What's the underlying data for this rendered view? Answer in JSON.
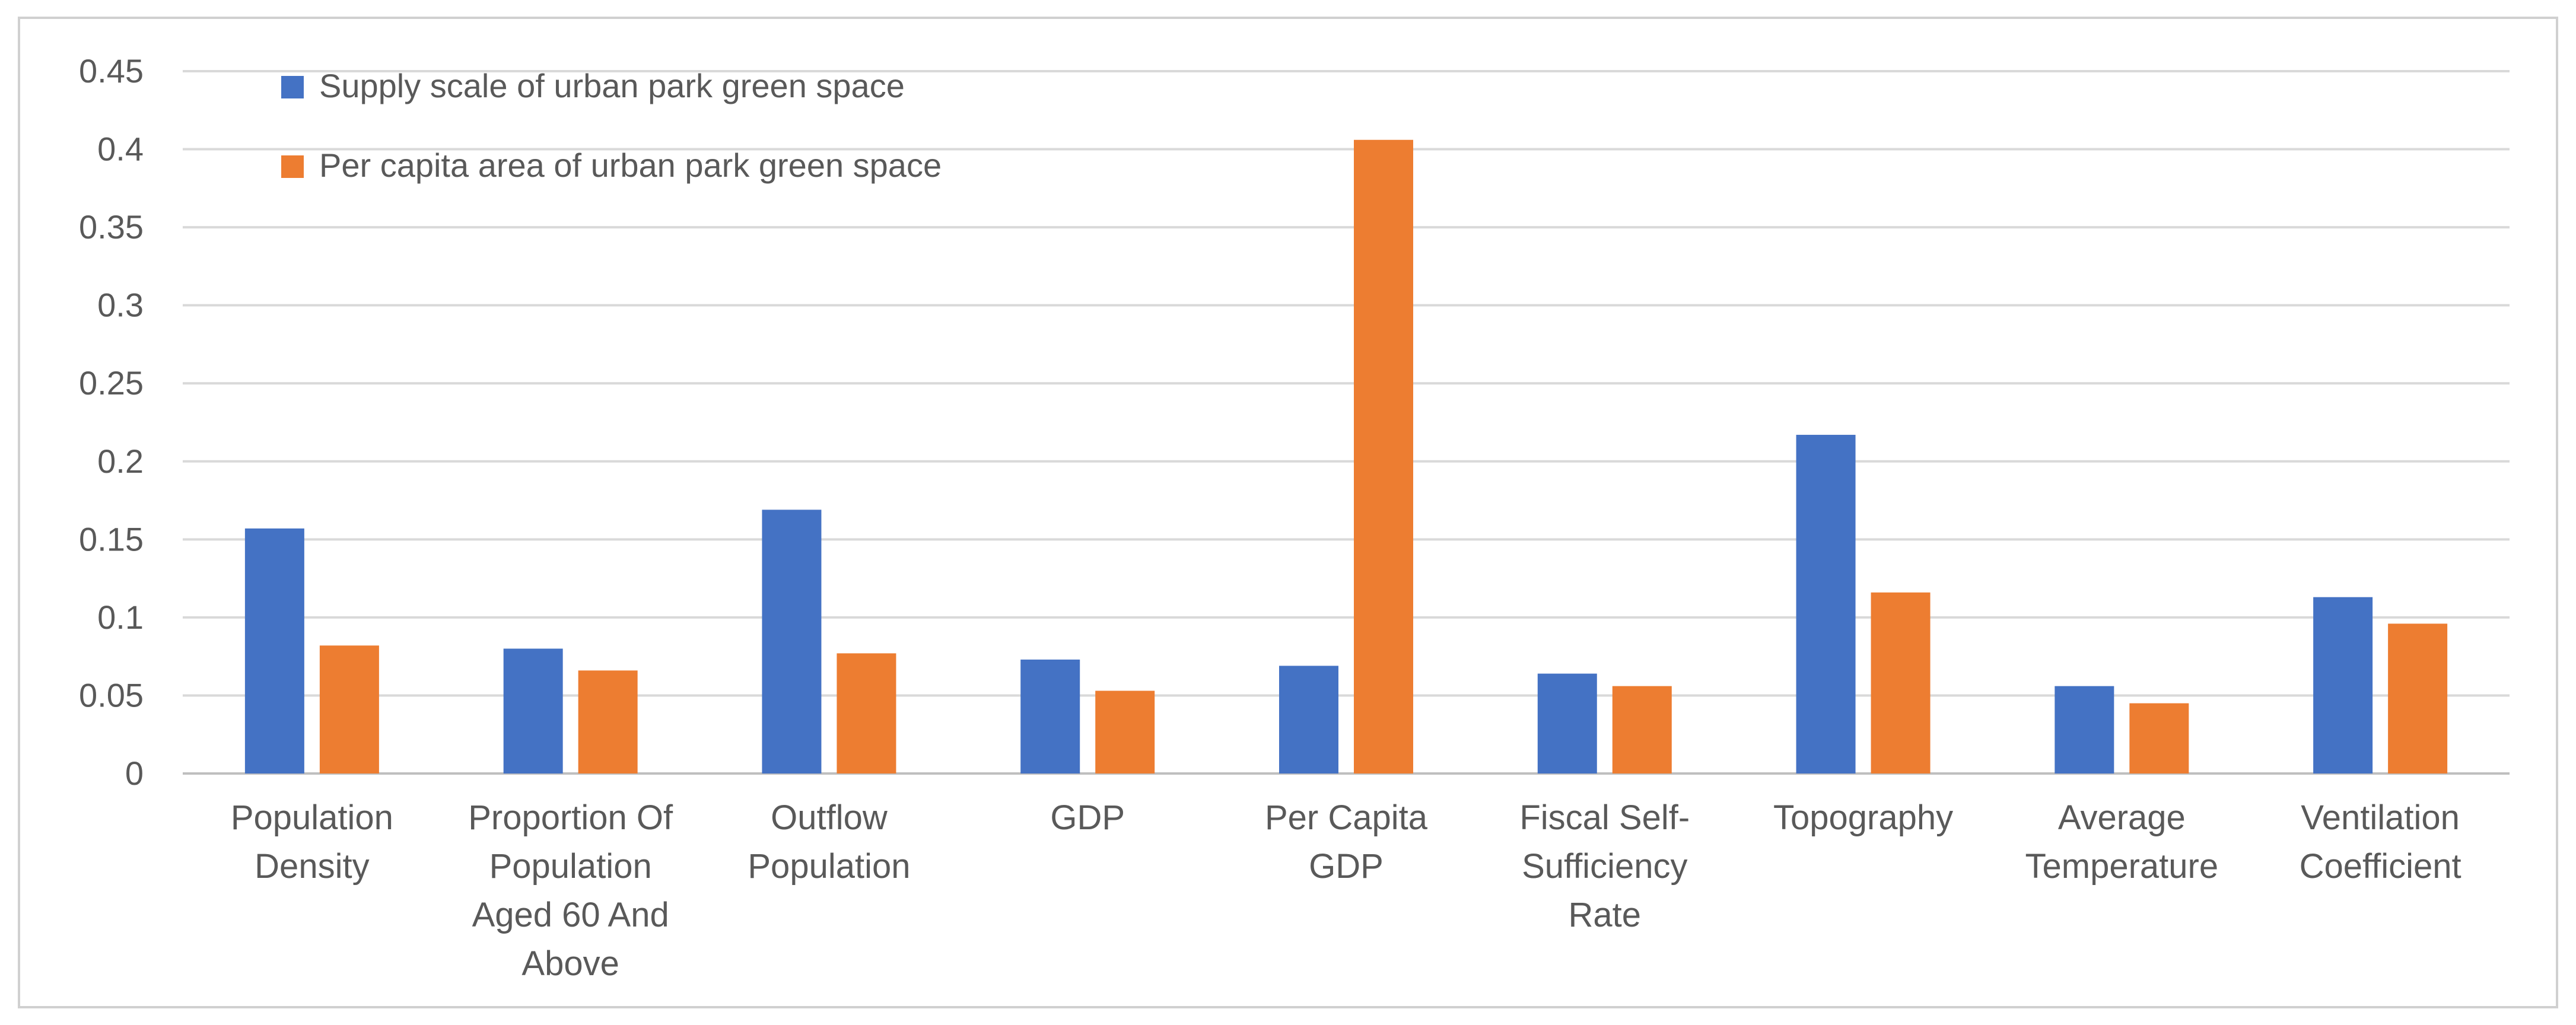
{
  "chart_data": {
    "type": "bar",
    "title": "",
    "xlabel": "",
    "ylabel": "",
    "ylim": [
      0,
      0.45
    ],
    "yticks": [
      "0",
      "0.05",
      "0.1",
      "0.15",
      "0.2",
      "0.25",
      "0.3",
      "0.35",
      "0.4",
      "0.45"
    ],
    "grid": true,
    "legend_position": "top-left",
    "categories": [
      [
        "Population",
        "Density"
      ],
      [
        "Proportion Of",
        "Population",
        "Aged 60 And",
        "Above"
      ],
      [
        "Outflow",
        "Population"
      ],
      [
        "GDP"
      ],
      [
        "Per Capita",
        "GDP"
      ],
      [
        "Fiscal Self-",
        "Sufficiency",
        "Rate"
      ],
      [
        "Topography"
      ],
      [
        "Average",
        "Temperature"
      ],
      [
        "Ventilation",
        "Coefficient"
      ]
    ],
    "series": [
      {
        "name": "Supply scale of urban park green space",
        "color": "#4472c4",
        "values": [
          0.157,
          0.08,
          0.169,
          0.073,
          0.069,
          0.064,
          0.217,
          0.056,
          0.113
        ]
      },
      {
        "name": "Per capita area of urban park green space",
        "color": "#ed7d31",
        "values": [
          0.082,
          0.066,
          0.077,
          0.053,
          0.406,
          0.056,
          0.116,
          0.045,
          0.096
        ]
      }
    ]
  }
}
